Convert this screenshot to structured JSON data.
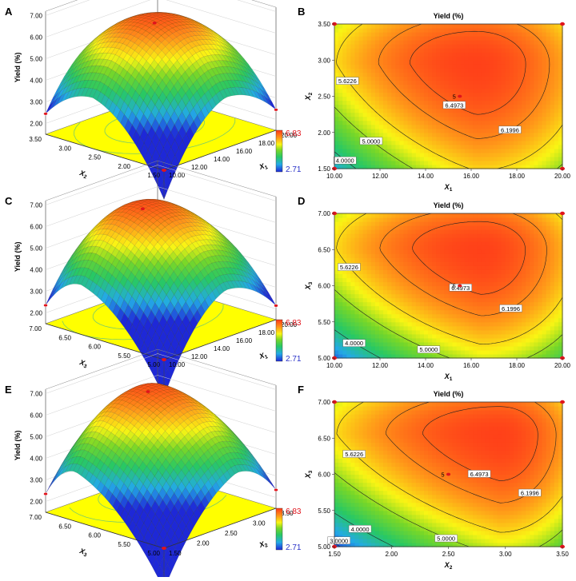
{
  "colors": {
    "surface_low": "#1f2fd8",
    "surface_mid": "#21c8a8",
    "surface_green": "#33c24a",
    "surface_high": "#ff3f1c",
    "floor": "#ffff00",
    "legend_max_color": "#e0141c",
    "legend_min_color": "#2a32c8",
    "point_color": "#e0141c"
  },
  "chart_data": [
    {
      "panel": "A",
      "type": "surface3d",
      "zlabel": "Yield (%)",
      "z_ticks": [
        "7.00",
        "6.00",
        "5.00",
        "4.00",
        "3.00",
        "2.00"
      ],
      "x_var": "X",
      "x_sub": "1",
      "x_ticks": [
        "20.00",
        "18.00",
        "16.00",
        "14.00",
        "12.00",
        "10.00"
      ],
      "y_var": "X",
      "y_sub": "2",
      "y_ticks": [
        "3.50",
        "3.00",
        "2.50",
        "2.00",
        "1.50"
      ],
      "legend_max": "6.83",
      "legend_min": "2.71",
      "x_range": [
        10,
        20
      ],
      "y_range": [
        1.5,
        3.5
      ],
      "optimum": {
        "x": 15.5,
        "y": 2.7,
        "z": 6.6
      },
      "corner_z": {
        "x0y0": 2.8,
        "x1y0": 4.9,
        "x0y1": 4.9,
        "x1y1": 5.5
      }
    },
    {
      "panel": "B",
      "type": "contour",
      "title": "Yield (%)",
      "x_var": "X",
      "x_sub": "1",
      "x_ticks": [
        "10.00",
        "12.00",
        "14.00",
        "16.00",
        "18.00",
        "20.00"
      ],
      "x_range": [
        10,
        20
      ],
      "y_var": "X",
      "y_sub": "2",
      "y_ticks": [
        "1.50",
        "2.00",
        "2.50",
        "3.00",
        "3.50"
      ],
      "y_range": [
        1.5,
        3.5
      ],
      "contour_labels": [
        "6.4973",
        "6.1996",
        "5.6226",
        "5.0000",
        "4.0000"
      ],
      "center_label": "5",
      "center_point": {
        "x": 15.5,
        "y": 2.5
      },
      "optimum": {
        "x": 16.2,
        "y": 2.95
      },
      "corner_z": {
        "x0y0": 3.3,
        "x1y0": 5.4,
        "x0y1": 5.3,
        "x1y1": 5.8
      }
    },
    {
      "panel": "C",
      "type": "surface3d",
      "zlabel": "Yield (%)",
      "z_ticks": [
        "7.00",
        "6.00",
        "5.00",
        "4.00",
        "3.00",
        "2.00"
      ],
      "x_var": "X",
      "x_sub": "1",
      "x_ticks": [
        "20.00",
        "18.00",
        "16.00",
        "14.00",
        "12.00",
        "10.00"
      ],
      "y_var": "X",
      "y_sub": "3",
      "y_ticks": [
        "7.00",
        "6.50",
        "6.00",
        "5.50",
        "5.00"
      ],
      "legend_max": "6.83",
      "legend_min": "2.71",
      "x_range": [
        10,
        20
      ],
      "y_range": [
        5,
        7
      ],
      "optimum": {
        "x": 15.5,
        "y": 6.4,
        "z": 6.6
      },
      "corner_z": {
        "x0y0": 2.7,
        "x1y0": 4.7,
        "x0y1": 4.9,
        "x1y1": 5.4
      }
    },
    {
      "panel": "D",
      "type": "contour",
      "title": "Yield (%)",
      "x_var": "X",
      "x_sub": "1",
      "x_ticks": [
        "10.00",
        "12.00",
        "14.00",
        "16.00",
        "18.00",
        "20.00"
      ],
      "x_range": [
        10,
        20
      ],
      "y_var": "X",
      "y_sub": "3",
      "y_ticks": [
        "5.00",
        "5.50",
        "6.00",
        "6.50",
        "7.00"
      ],
      "y_range": [
        5,
        7
      ],
      "contour_labels": [
        "6.4973",
        "6.1996",
        "5.6226",
        "5.0000",
        "4.0000",
        "3.0000"
      ],
      "center_label": "5",
      "center_point": {
        "x": 15.5,
        "y": 6.0
      },
      "optimum": {
        "x": 16.4,
        "y": 6.5
      },
      "corner_z": {
        "x0y0": 2.7,
        "x1y0": 4.9,
        "x0y1": 5.3,
        "x1y1": 5.7
      }
    },
    {
      "panel": "E",
      "type": "surface3d",
      "zlabel": "Yield (%)",
      "z_ticks": [
        "7.00",
        "6.00",
        "5.00",
        "4.00",
        "3.00",
        "2.00"
      ],
      "x_var": "X",
      "x_sub": "2",
      "x_ticks": [
        "3.50",
        "3.00",
        "2.50",
        "2.00",
        "1.50"
      ],
      "y_var": "X",
      "y_sub": "3",
      "y_ticks": [
        "7.00",
        "6.50",
        "6.00",
        "5.50",
        "5.00"
      ],
      "legend_max": "6.83",
      "legend_min": "2.71",
      "x_range": [
        1.5,
        3.5
      ],
      "y_range": [
        5,
        7
      ],
      "optimum": {
        "x": 2.8,
        "y": 6.5,
        "z": 6.6
      },
      "corner_z": {
        "x0y0": 2.7,
        "x1y0": 4.9,
        "x0y1": 4.9,
        "x1y1": 5.4
      }
    },
    {
      "panel": "F",
      "type": "contour",
      "title": "Yield (%)",
      "x_var": "X",
      "x_sub": "2",
      "x_ticks": [
        "1.50",
        "2.00",
        "2.50",
        "3.00",
        "3.50"
      ],
      "x_range": [
        1.5,
        3.5
      ],
      "y_var": "X",
      "y_sub": "3",
      "y_ticks": [
        "5.00",
        "5.50",
        "6.00",
        "6.50",
        "7.00"
      ],
      "y_range": [
        5,
        7
      ],
      "contour_labels": [
        "6.4973",
        "6.1996",
        "5.6226",
        "5.0000",
        "4.0000",
        "3.0000"
      ],
      "center_label": "5",
      "center_point": {
        "x": 2.5,
        "y": 6.0
      },
      "optimum": {
        "x": 2.95,
        "y": 6.55
      },
      "corner_z": {
        "x0y0": 2.7,
        "x1y0": 4.9,
        "x0y1": 5.3,
        "x1y1": 5.9
      }
    }
  ]
}
